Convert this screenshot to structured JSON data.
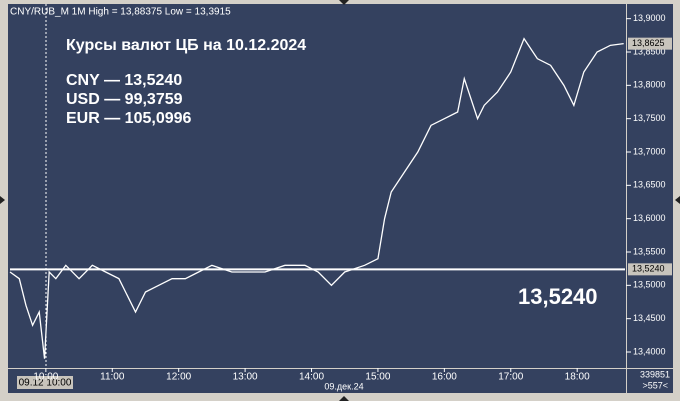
{
  "chart_data": {
    "type": "line",
    "title": "CNY/RUB_M 1M High = 13,88375 Low = 13,3915",
    "annotation_title": "Курсы валют ЦБ на 10.12.2024",
    "annotation_lines": [
      "CNY — 13,5240",
      "USD — 99,3759",
      "EUR — 105,0996"
    ],
    "cursor_label": "09.12 10:00",
    "date_label": "09.дек.24",
    "volume_label": "339851",
    "count_label": ">557<",
    "reference_line": {
      "value": 13.524,
      "label": "13,5240"
    },
    "last_price": {
      "value": 13.8625,
      "label": "13,8625"
    },
    "x": [
      9.46,
      9.6,
      9.7,
      9.8,
      9.9,
      9.98,
      10.05,
      10.15,
      10.3,
      10.5,
      10.7,
      10.9,
      11.1,
      11.2,
      11.35,
      11.5,
      11.7,
      11.9,
      12.1,
      12.3,
      12.5,
      12.8,
      13.0,
      13.3,
      13.6,
      13.9,
      14.1,
      14.3,
      14.5,
      14.8,
      15.0,
      15.1,
      15.2,
      15.4,
      15.6,
      15.8,
      16.0,
      16.2,
      16.3,
      16.5,
      16.6,
      16.8,
      17.0,
      17.2,
      17.4,
      17.6,
      17.8,
      17.95,
      18.1,
      18.3,
      18.5,
      18.7
    ],
    "series": [
      {
        "name": "CNY/RUB_M",
        "color": "#ffffff",
        "values": [
          13.52,
          13.51,
          13.47,
          13.44,
          13.46,
          13.39,
          13.52,
          13.51,
          13.53,
          13.51,
          13.53,
          13.52,
          13.51,
          13.49,
          13.46,
          13.49,
          13.5,
          13.51,
          13.51,
          13.52,
          13.53,
          13.52,
          13.52,
          13.52,
          13.53,
          13.53,
          13.52,
          13.5,
          13.52,
          13.53,
          13.54,
          13.6,
          13.64,
          13.67,
          13.7,
          13.74,
          13.75,
          13.76,
          13.81,
          13.75,
          13.77,
          13.79,
          13.82,
          13.87,
          13.84,
          13.83,
          13.8,
          13.77,
          13.82,
          13.85,
          13.86,
          13.8625
        ]
      }
    ],
    "xlim": [
      9.46,
      18.72
    ],
    "xticks": [
      {
        "value": 10,
        "label": "10:00"
      },
      {
        "value": 11,
        "label": "11:00"
      },
      {
        "value": 12,
        "label": "12:00"
      },
      {
        "value": 13,
        "label": "13:00"
      },
      {
        "value": 14,
        "label": "14:00"
      },
      {
        "value": 15,
        "label": "15:00"
      },
      {
        "value": 16,
        "label": "16:00"
      },
      {
        "value": 17,
        "label": "17:00"
      },
      {
        "value": 18,
        "label": "18:00"
      }
    ],
    "ylim": [
      13.376,
      13.928
    ],
    "yticks": [
      {
        "value": 13.9,
        "label": "13,9000"
      },
      {
        "value": 13.85,
        "label": "13,8500"
      },
      {
        "value": 13.8,
        "label": "13,8000"
      },
      {
        "value": 13.75,
        "label": "13,7500"
      },
      {
        "value": 13.7,
        "label": "13,7000"
      },
      {
        "value": 13.65,
        "label": "13,6500"
      },
      {
        "value": 13.6,
        "label": "13,6000"
      },
      {
        "value": 13.55,
        "label": "13,5500"
      },
      {
        "value": 13.5,
        "label": "13,5000"
      },
      {
        "value": 13.45,
        "label": "13,4500"
      },
      {
        "value": 13.4,
        "label": "13,4000"
      }
    ],
    "grid": false
  }
}
